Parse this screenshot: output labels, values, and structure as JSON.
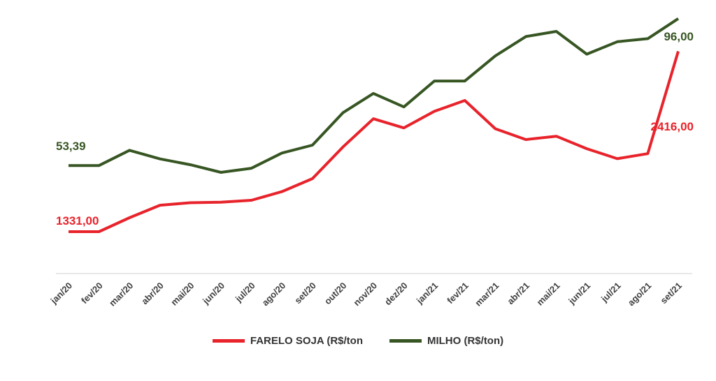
{
  "chart_data": {
    "type": "line",
    "title": "",
    "xlabel": "",
    "ylabel": "",
    "categories": [
      "jan/20",
      "fev/20",
      "mar/20",
      "abr/20",
      "mai/20",
      "jun/20",
      "jul/20",
      "ago/20",
      "set/20",
      "out/20",
      "nov/20",
      "dez/20",
      "jan/21",
      "fev/21",
      "mar/21",
      "abr/21",
      "mai/21",
      "jun/21",
      "jul/21",
      "ago/21",
      "set/21"
    ],
    "series": [
      {
        "name": "FARELO SOJA (R$/ton",
        "color": "#e8232b",
        "values": [
          1331,
          1331,
          1415,
          1490,
          1505,
          1508,
          1520,
          1572,
          1650,
          1840,
          2010,
          1955,
          2055,
          2120,
          1950,
          1885,
          1905,
          1830,
          1770,
          1800,
          2416
        ],
        "start_label": "1331,00",
        "end_label": "2416,00"
      },
      {
        "name": "MILHO (R$/ton)",
        "color": "#375623",
        "values": [
          53.39,
          53.39,
          57.8,
          55.3,
          53.6,
          51.4,
          52.6,
          57.0,
          59.3,
          68.7,
          74.3,
          70.4,
          77.9,
          77.9,
          85.2,
          90.8,
          92.3,
          85.7,
          89.3,
          90.2,
          96
        ],
        "start_label": "53,39",
        "end_label": "96,00"
      }
    ],
    "grid": false,
    "legend": "bottom"
  }
}
